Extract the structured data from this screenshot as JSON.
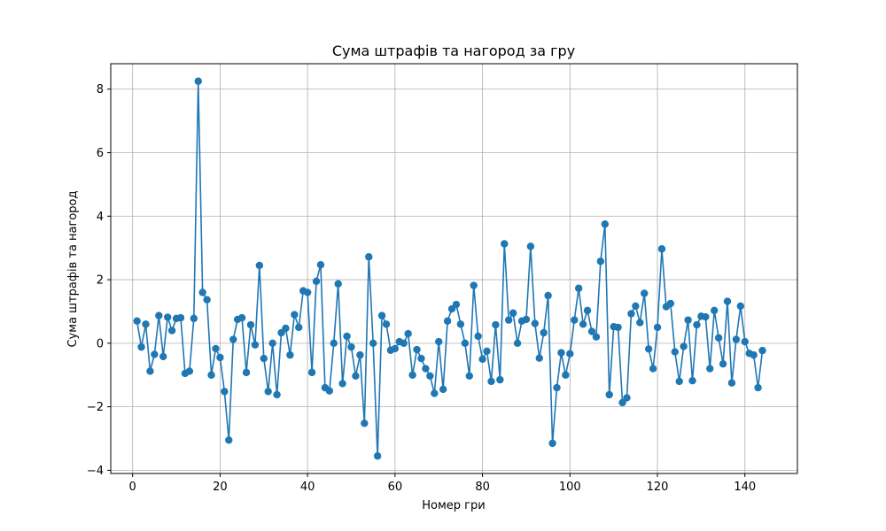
{
  "chart_data": {
    "type": "line",
    "title": "Сума штрафів та нагород за гру",
    "xlabel": "Номер гри",
    "ylabel": "Сума штрафів та нагород",
    "xlim": [
      -5,
      152
    ],
    "ylim": [
      -4.1,
      8.8
    ],
    "xticks": [
      0,
      20,
      40,
      60,
      80,
      100,
      120,
      140
    ],
    "yticks": [
      -4,
      -2,
      0,
      2,
      4,
      6,
      8
    ],
    "grid": true,
    "color": "#1f77b4",
    "x": [
      1,
      2,
      3,
      4,
      5,
      6,
      7,
      8,
      9,
      10,
      11,
      12,
      13,
      14,
      15,
      16,
      17,
      18,
      19,
      20,
      21,
      22,
      23,
      24,
      25,
      26,
      27,
      28,
      29,
      30,
      31,
      32,
      33,
      34,
      35,
      36,
      37,
      38,
      39,
      40,
      41,
      42,
      43,
      44,
      45,
      46,
      47,
      48,
      49,
      50,
      51,
      52,
      53,
      54,
      55,
      56,
      57,
      58,
      59,
      60,
      61,
      62,
      63,
      64,
      65,
      66,
      67,
      68,
      69,
      70,
      71,
      72,
      73,
      74,
      75,
      76,
      77,
      78,
      79,
      80,
      81,
      82,
      83,
      84,
      85,
      86,
      87,
      88,
      89,
      90,
      91,
      92,
      93,
      94,
      95,
      96,
      97,
      98,
      99,
      100,
      101,
      102,
      103,
      104,
      105,
      106,
      107,
      108,
      109,
      110,
      111,
      112,
      113,
      114,
      115,
      116,
      117,
      118,
      119,
      120,
      121,
      122,
      123,
      124,
      125,
      126,
      127,
      128,
      129,
      130,
      131,
      132,
      133,
      134,
      135,
      136,
      137,
      138,
      139,
      140,
      141,
      142,
      143,
      144
    ],
    "y": [
      0.7,
      -0.12,
      0.6,
      -0.88,
      -0.35,
      0.87,
      -0.42,
      0.82,
      0.4,
      0.78,
      0.8,
      -0.95,
      -0.88,
      0.78,
      8.25,
      1.6,
      1.37,
      -1.0,
      -0.17,
      -0.45,
      -1.52,
      -3.05,
      0.12,
      0.75,
      0.8,
      -0.92,
      0.58,
      -0.05,
      2.45,
      -0.48,
      -1.52,
      0.0,
      -1.62,
      0.33,
      0.47,
      -0.37,
      0.9,
      0.5,
      1.65,
      1.6,
      -0.92,
      1.95,
      2.47,
      -1.4,
      -1.5,
      0.0,
      1.87,
      -1.27,
      0.22,
      -0.12,
      -1.03,
      -0.37,
      -2.52,
      2.72,
      0.0,
      -3.55,
      0.87,
      0.6,
      -0.22,
      -0.17,
      0.05,
      0.0,
      0.3,
      -1.0,
      -0.2,
      -0.48,
      -0.8,
      -1.03,
      -1.58,
      0.05,
      -1.45,
      0.7,
      1.08,
      1.22,
      0.6,
      0.0,
      -1.03,
      1.82,
      0.22,
      -0.5,
      -0.25,
      -1.2,
      0.58,
      -1.15,
      3.13,
      0.73,
      0.95,
      0.0,
      0.7,
      0.75,
      3.05,
      0.62,
      -0.47,
      0.33,
      1.5,
      -3.15,
      -1.4,
      -0.3,
      -1.0,
      -0.33,
      0.73,
      1.73,
      0.6,
      1.03,
      0.37,
      0.2,
      2.58,
      3.75,
      -1.62,
      0.52,
      0.5,
      -1.87,
      -1.72,
      0.93,
      1.17,
      0.65,
      1.57,
      -0.18,
      -0.8,
      0.5,
      2.97,
      1.15,
      1.25,
      -0.27,
      -1.2,
      -0.1,
      0.73,
      -1.18,
      0.58,
      0.85,
      0.83,
      -0.8,
      1.03,
      0.17,
      -0.65,
      1.32,
      -1.25,
      0.12,
      1.17,
      0.05,
      -0.32,
      -0.37,
      -1.4,
      -0.23
    ]
  }
}
